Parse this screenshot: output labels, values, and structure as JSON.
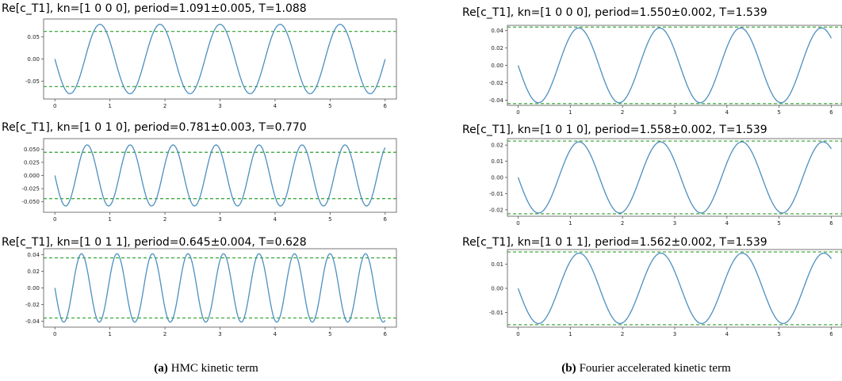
{
  "captions": [
    {
      "label": "(a)",
      "text": "HMC kinetic term"
    },
    {
      "label": "(b)",
      "text": "Fourier accelerated kinetic term"
    }
  ],
  "colors": {
    "line": "#4c8fbf",
    "ref": "#2ca02c",
    "axis": "#555555"
  },
  "chart_data": [
    {
      "type": "line",
      "title": "Re[c_T1], kn=[1 0 0 0], period=1.091±0.005, T=1.088",
      "amplitude": 0.078,
      "period": 1.091,
      "refline": 0.062,
      "xlim": [
        0,
        6
      ],
      "ylim": [
        -0.09,
        0.09
      ],
      "xticks": [
        0,
        1,
        2,
        3,
        4,
        5,
        6
      ],
      "yticks": [
        0.05,
        0,
        -0.05
      ],
      "yticklabels": [
        "0.05",
        "0.00",
        "-0.05"
      ]
    },
    {
      "type": "line",
      "title": "Re[c_T1], kn=[1 0 1 0], period=0.781±0.003, T=0.770",
      "amplitude": 0.058,
      "period": 0.781,
      "refline": 0.044,
      "xlim": [
        0,
        6
      ],
      "ylim": [
        -0.07,
        0.07
      ],
      "xticks": [
        0,
        1,
        2,
        3,
        4,
        5,
        6
      ],
      "yticks": [
        0.05,
        0.025,
        0,
        -0.025,
        -0.05
      ],
      "yticklabels": [
        "0.050",
        "0.025",
        "0.000",
        "-0.025",
        "-0.050"
      ]
    },
    {
      "type": "line",
      "title": "Re[c_T1], kn=[1 0 1 1], period=0.645±0.004, T=0.628",
      "amplitude": 0.041,
      "period": 0.645,
      "refline": 0.036,
      "xlim": [
        0,
        6
      ],
      "ylim": [
        -0.047,
        0.047
      ],
      "xticks": [
        0,
        1,
        2,
        3,
        4,
        5,
        6
      ],
      "yticks": [
        0.04,
        0.02,
        0,
        -0.02,
        -0.04
      ],
      "yticklabels": [
        "0.04",
        "0.02",
        "0.00",
        "-0.02",
        "-0.04"
      ]
    },
    {
      "type": "line",
      "title": "Re[c_T1], kn=[1 0 0 0], period=1.550±0.002, T=1.539",
      "amplitude": 0.043,
      "period": 1.55,
      "refline": 0.044,
      "xlim": [
        0,
        6
      ],
      "ylim": [
        -0.046,
        0.046
      ],
      "xticks": [
        0,
        1,
        2,
        3,
        4,
        5,
        6
      ],
      "yticks": [
        0.04,
        0.02,
        0,
        -0.02,
        -0.04
      ],
      "yticklabels": [
        "0.04",
        "0.02",
        "0.00",
        "-0.02",
        "-0.04"
      ]
    },
    {
      "type": "line",
      "title": "Re[c_T1], kn=[1 0 1 0], period=1.558±0.002, T=1.539",
      "amplitude": 0.022,
      "period": 1.558,
      "refline": 0.0225,
      "xlim": [
        0,
        6
      ],
      "ylim": [
        -0.024,
        0.024
      ],
      "xticks": [
        0,
        1,
        2,
        3,
        4,
        5,
        6
      ],
      "yticks": [
        0.02,
        0.01,
        0,
        -0.01,
        -0.02
      ],
      "yticklabels": [
        "0.02",
        "0.01",
        "0.00",
        "-0.01",
        "-0.02"
      ]
    },
    {
      "type": "line",
      "title": "Re[c_T1], kn=[1 0 1 1], period=1.562±0.002, T=1.539",
      "amplitude": 0.0145,
      "period": 1.562,
      "refline": 0.015,
      "xlim": [
        0,
        6
      ],
      "ylim": [
        -0.016,
        0.016
      ],
      "xticks": [
        0,
        1,
        2,
        3,
        4,
        5,
        6
      ],
      "yticks": [
        0.01,
        0,
        -0.01
      ],
      "yticklabels": [
        "0.01",
        "0.00",
        "-0.01"
      ]
    }
  ]
}
